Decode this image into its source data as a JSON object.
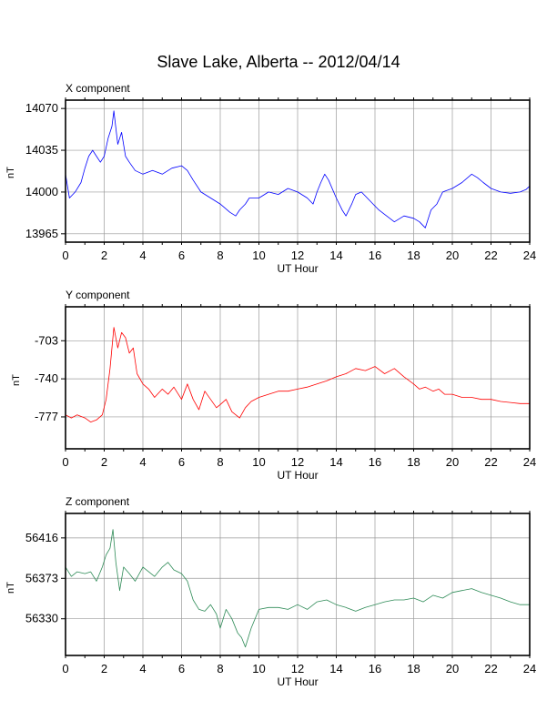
{
  "title": "Slave Lake, Alberta -- 2012/04/14",
  "chart_data": [
    {
      "type": "line",
      "title": "X component",
      "xlabel": "UT Hour",
      "ylabel": "nT",
      "xlim": [
        0,
        24
      ],
      "ylim": [
        13958,
        14077
      ],
      "xticks": [
        0,
        2,
        4,
        6,
        8,
        10,
        12,
        14,
        16,
        18,
        20,
        22,
        24
      ],
      "yticks": [
        13965,
        14000,
        14035,
        14070
      ],
      "grid": true,
      "color": "#0000ff",
      "series": [
        {
          "x": [
            0,
            0.2,
            0.5,
            0.8,
            1.0,
            1.2,
            1.4,
            1.6,
            1.8,
            2.0,
            2.2,
            2.4,
            2.5,
            2.7,
            2.9,
            3.1,
            3.3,
            3.6,
            4.0,
            4.5,
            5.0,
            5.5,
            6.0,
            6.3,
            6.6,
            7.0,
            7.5,
            8.0,
            8.5,
            8.8,
            9.0,
            9.3,
            9.5,
            10.0,
            10.5,
            11.0,
            11.5,
            12.0,
            12.5,
            12.8,
            13.0,
            13.2,
            13.4,
            13.6,
            14.0,
            14.3,
            14.5,
            14.8,
            15.0,
            15.3,
            15.6,
            15.9,
            16.2,
            16.6,
            17.0,
            17.5,
            18.0,
            18.3,
            18.6,
            18.9,
            19.2,
            19.5,
            20.0,
            20.5,
            21.0,
            21.3,
            21.6,
            22.0,
            22.5,
            23.0,
            23.5,
            23.8,
            24
          ],
          "y": [
            14015,
            13995,
            14000,
            14008,
            14020,
            14030,
            14035,
            14030,
            14025,
            14030,
            14045,
            14055,
            14068,
            14040,
            14050,
            14030,
            14025,
            14018,
            14015,
            14018,
            14015,
            14020,
            14022,
            14018,
            14010,
            14000,
            13995,
            13990,
            13983,
            13980,
            13985,
            13990,
            13995,
            13995,
            14000,
            13998,
            14003,
            14000,
            13995,
            13990,
            14000,
            14008,
            14015,
            14010,
            13995,
            13985,
            13980,
            13990,
            13998,
            14000,
            13995,
            13990,
            13985,
            13980,
            13975,
            13980,
            13978,
            13975,
            13970,
            13985,
            13990,
            14000,
            14003,
            14008,
            14015,
            14012,
            14008,
            14003,
            14000,
            13999,
            14000,
            14002,
            14005
          ]
        }
      ]
    },
    {
      "type": "line",
      "title": "Y component",
      "xlabel": "UT Hour",
      "ylabel": "nT",
      "xlim": [
        0,
        24
      ],
      "ylim": [
        -808,
        -670
      ],
      "xticks": [
        0,
        2,
        4,
        6,
        8,
        10,
        12,
        14,
        16,
        18,
        20,
        22,
        24
      ],
      "yticks": [
        -777,
        -740,
        -703
      ],
      "grid": true,
      "color": "#ff0000",
      "series": [
        {
          "x": [
            0,
            0.3,
            0.6,
            1.0,
            1.3,
            1.6,
            1.9,
            2.1,
            2.3,
            2.5,
            2.7,
            2.9,
            3.1,
            3.3,
            3.5,
            3.7,
            4.0,
            4.3,
            4.6,
            5.0,
            5.3,
            5.6,
            6.0,
            6.3,
            6.6,
            6.9,
            7.2,
            7.5,
            7.8,
            8.0,
            8.3,
            8.6,
            9.0,
            9.3,
            9.6,
            10.0,
            10.5,
            11.0,
            11.5,
            12.0,
            12.5,
            13.0,
            13.5,
            14.0,
            14.5,
            15.0,
            15.5,
            16.0,
            16.5,
            17.0,
            17.5,
            18.0,
            18.3,
            18.6,
            19.0,
            19.3,
            19.6,
            20.0,
            20.5,
            21.0,
            21.5,
            22.0,
            22.5,
            23.0,
            23.5,
            24
          ],
          "y": [
            -775,
            -778,
            -775,
            -778,
            -782,
            -780,
            -775,
            -760,
            -730,
            -690,
            -710,
            -695,
            -700,
            -715,
            -710,
            -735,
            -745,
            -750,
            -758,
            -750,
            -755,
            -748,
            -760,
            -745,
            -760,
            -770,
            -752,
            -760,
            -768,
            -765,
            -760,
            -772,
            -778,
            -768,
            -762,
            -758,
            -755,
            -752,
            -752,
            -750,
            -748,
            -745,
            -742,
            -738,
            -735,
            -730,
            -732,
            -728,
            -735,
            -730,
            -738,
            -745,
            -750,
            -748,
            -752,
            -750,
            -755,
            -755,
            -758,
            -758,
            -760,
            -760,
            -762,
            -763,
            -764,
            -764
          ]
        }
      ]
    },
    {
      "type": "line",
      "title": "Z component",
      "xlabel": "UT Hour",
      "ylabel": "nT",
      "xlim": [
        0,
        24
      ],
      "ylim": [
        56291,
        56442
      ],
      "xticks": [
        0,
        2,
        4,
        6,
        8,
        10,
        12,
        14,
        16,
        18,
        20,
        22,
        24
      ],
      "yticks": [
        56330,
        56373,
        56416
      ],
      "grid": true,
      "color": "#2e8b57",
      "series": [
        {
          "x": [
            0,
            0.3,
            0.6,
            1.0,
            1.3,
            1.6,
            1.9,
            2.1,
            2.3,
            2.45,
            2.6,
            2.8,
            3.0,
            3.3,
            3.6,
            4.0,
            4.3,
            4.6,
            5.0,
            5.3,
            5.6,
            6.0,
            6.3,
            6.6,
            6.9,
            7.2,
            7.5,
            7.8,
            8.0,
            8.3,
            8.6,
            8.9,
            9.1,
            9.3,
            9.6,
            10.0,
            10.5,
            11.0,
            11.5,
            12.0,
            12.5,
            13.0,
            13.5,
            14.0,
            14.5,
            15.0,
            15.5,
            16.0,
            16.5,
            17.0,
            17.5,
            18.0,
            18.5,
            19.0,
            19.5,
            20.0,
            20.5,
            21.0,
            21.5,
            22.0,
            22.5,
            23.0,
            23.5,
            24
          ],
          "y": [
            56385,
            56375,
            56380,
            56378,
            56380,
            56370,
            56385,
            56398,
            56405,
            56425,
            56390,
            56360,
            56385,
            56378,
            56370,
            56385,
            56380,
            56375,
            56385,
            56390,
            56382,
            56378,
            56370,
            56350,
            56340,
            56338,
            56345,
            56335,
            56320,
            56340,
            56330,
            56315,
            56310,
            56300,
            56320,
            56340,
            56342,
            56342,
            56340,
            56345,
            56340,
            56348,
            56350,
            56345,
            56342,
            56338,
            56342,
            56345,
            56348,
            56350,
            56350,
            56352,
            56348,
            56355,
            56352,
            56358,
            56360,
            56362,
            56358,
            56355,
            56352,
            56348,
            56345,
            56345
          ]
        }
      ]
    }
  ]
}
